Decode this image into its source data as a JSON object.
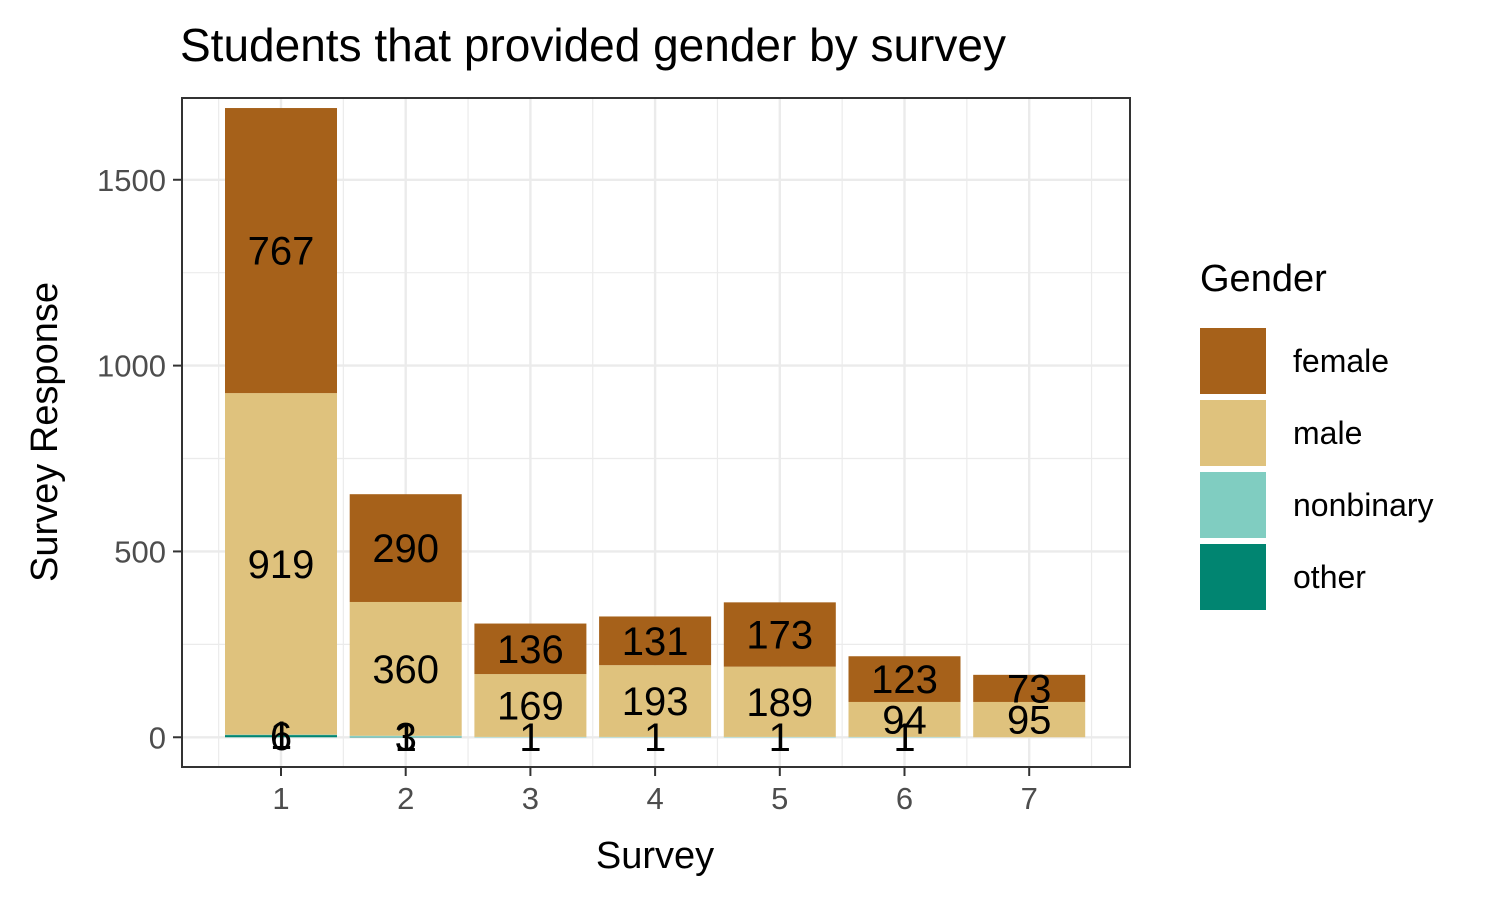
{
  "chart_data": {
    "type": "bar",
    "stacked": true,
    "title": "Students that provided gender by survey",
    "xlabel": "Survey",
    "ylabel": "Survey Response",
    "categories": [
      "1",
      "2",
      "3",
      "4",
      "5",
      "6",
      "7"
    ],
    "ylim": [
      -80,
      1720
    ],
    "yticks": [
      "0",
      "500",
      "1000",
      "1500"
    ],
    "grid": true,
    "legend_title": "Gender",
    "legend_position": "right",
    "series": [
      {
        "name": "other",
        "color": "#018571",
        "values": [
          6,
          1,
          0,
          0,
          0,
          0,
          0
        ],
        "labels": [
          "6",
          "1",
          "",
          "",
          "",
          "",
          ""
        ]
      },
      {
        "name": "nonbinary",
        "color": "#80CDC1",
        "values": [
          1,
          3,
          1,
          1,
          1,
          1,
          0
        ],
        "labels": [
          "1",
          "3",
          "1",
          "1",
          "1",
          "1",
          ""
        ]
      },
      {
        "name": "male",
        "color": "#DFC27D",
        "values": [
          919,
          360,
          169,
          193,
          189,
          94,
          95
        ],
        "labels": [
          "919",
          "360",
          "169",
          "193",
          "189",
          "94",
          "95"
        ]
      },
      {
        "name": "female",
        "color": "#A6611A",
        "values": [
          767,
          290,
          136,
          131,
          173,
          123,
          73
        ],
        "labels": [
          "767",
          "290",
          "136",
          "131",
          "173",
          "123",
          "73"
        ]
      }
    ]
  }
}
